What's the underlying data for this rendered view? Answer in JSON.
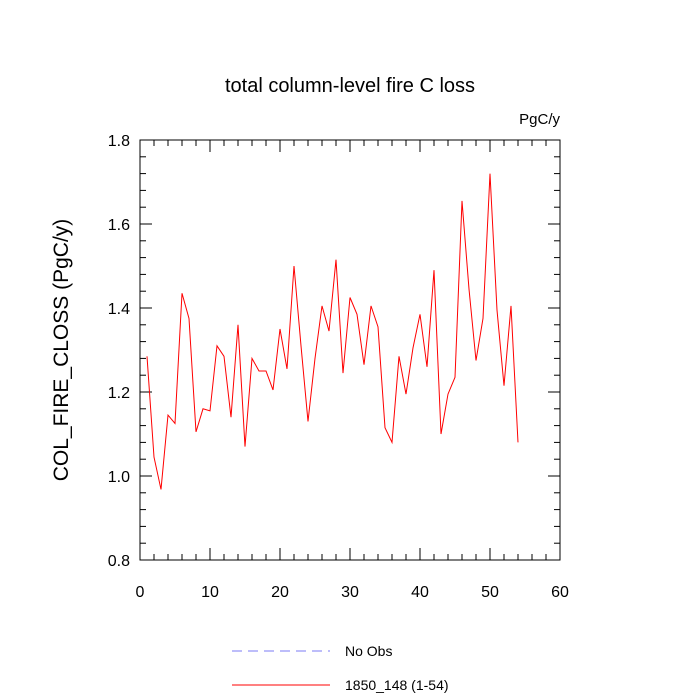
{
  "chart_data": {
    "type": "line",
    "title": "total column-level fire C loss",
    "units": "PgC/y",
    "xlabel": "",
    "ylabel": "COL_FIRE_CLOSS  (PgC/y)",
    "xlim": [
      0,
      60
    ],
    "ylim": [
      0.8,
      1.8
    ],
    "xticks": [
      0,
      10,
      20,
      30,
      40,
      50,
      60
    ],
    "xtick_labels": [
      "0",
      "10",
      "20",
      "30",
      "40",
      "50",
      "60"
    ],
    "yticks": [
      0.8,
      1.0,
      1.2,
      1.4,
      1.6,
      1.8
    ],
    "ytick_labels": [
      "0.8",
      "1.0",
      "1.2",
      "1.4",
      "1.6",
      "1.8"
    ],
    "grid": false,
    "legend": [
      {
        "label": "No Obs",
        "color": "#7b7bf5",
        "style": "dashed"
      },
      {
        "label": "1850_148 (1-54)",
        "color": "#ff0000",
        "style": "solid"
      }
    ],
    "series": [
      {
        "name": "1850_148 (1-54)",
        "color": "#ff0000",
        "x": [
          1,
          2,
          3,
          4,
          5,
          6,
          7,
          8,
          9,
          10,
          11,
          12,
          13,
          14,
          15,
          16,
          17,
          18,
          19,
          20,
          21,
          22,
          23,
          24,
          25,
          26,
          27,
          28,
          29,
          30,
          31,
          32,
          33,
          34,
          35,
          36,
          37,
          38,
          39,
          40,
          41,
          42,
          43,
          44,
          45,
          46,
          47,
          48,
          49,
          50,
          51,
          52,
          53,
          54
        ],
        "values": [
          1.285,
          1.045,
          0.968,
          1.145,
          1.125,
          1.435,
          1.375,
          1.105,
          1.16,
          1.155,
          1.31,
          1.285,
          1.14,
          1.36,
          1.07,
          1.28,
          1.25,
          1.25,
          1.205,
          1.35,
          1.255,
          1.5,
          1.31,
          1.13,
          1.28,
          1.405,
          1.345,
          1.515,
          1.245,
          1.425,
          1.385,
          1.265,
          1.405,
          1.355,
          1.115,
          1.08,
          1.285,
          1.195,
          1.305,
          1.385,
          1.26,
          1.49,
          1.1,
          1.195,
          1.235,
          1.655,
          1.445,
          1.275,
          1.375,
          1.72,
          1.395,
          1.215,
          1.405,
          1.08
        ]
      }
    ]
  }
}
